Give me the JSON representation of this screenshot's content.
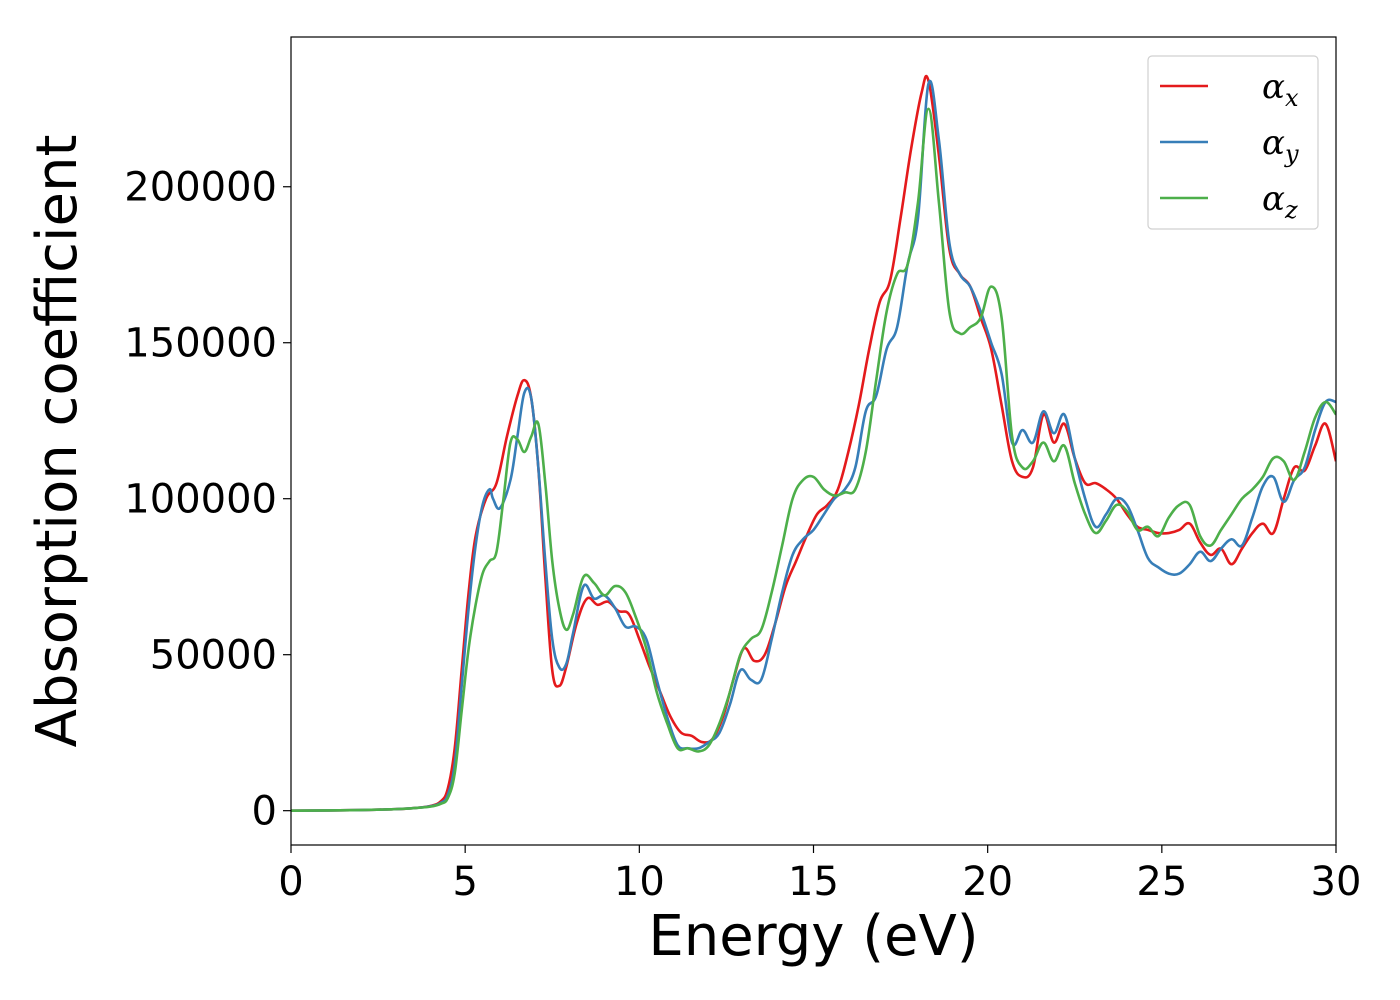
{
  "chart_data": {
    "type": "line",
    "title": "",
    "xlabel": "Energy (eV)",
    "ylabel": "Absorption coefficient",
    "xlim": [
      0,
      30
    ],
    "ylim": [
      -11000,
      248000
    ],
    "xticks": [
      0,
      5,
      10,
      15,
      20,
      25,
      30
    ],
    "yticks": [
      0,
      50000,
      100000,
      150000,
      200000
    ],
    "grid": false,
    "legend_position": "top-right",
    "series": [
      {
        "name": "αx",
        "symbol": "α",
        "subscript": "x",
        "color": "#e41a1c",
        "x": [
          0,
          2,
          3,
          3.5,
          4,
          4.3,
          4.5,
          4.7,
          4.9,
          5.1,
          5.3,
          5.6,
          5.9,
          6.2,
          6.5,
          6.7,
          6.9,
          7.1,
          7.3,
          7.5,
          7.7,
          7.9,
          8.2,
          8.5,
          8.8,
          9.1,
          9.4,
          9.7,
          10.0,
          10.3,
          10.6,
          10.9,
          11.2,
          11.5,
          11.8,
          12.1,
          12.4,
          12.7,
          13.0,
          13.3,
          13.6,
          13.9,
          14.2,
          14.5,
          14.8,
          15.1,
          15.4,
          15.7,
          16.0,
          16.3,
          16.6,
          16.9,
          17.2,
          17.5,
          17.8,
          18.1,
          18.3,
          18.6,
          18.9,
          19.2,
          19.5,
          19.8,
          20.1,
          20.4,
          20.7,
          21.0,
          21.3,
          21.6,
          21.9,
          22.2,
          22.5,
          22.8,
          23.1,
          23.4,
          23.7,
          24.0,
          24.3,
          24.6,
          24.9,
          25.2,
          25.5,
          25.8,
          26.1,
          26.4,
          26.7,
          27.0,
          27.3,
          27.6,
          27.9,
          28.2,
          28.5,
          28.8,
          29.1,
          29.4,
          29.7,
          30
        ],
        "values": [
          0,
          200,
          500,
          800,
          1500,
          3000,
          7000,
          20000,
          45000,
          70000,
          88000,
          100000,
          105000,
          120000,
          133000,
          138000,
          132000,
          110000,
          75000,
          45000,
          40000,
          46000,
          60000,
          68000,
          66000,
          67000,
          64000,
          63000,
          55000,
          46000,
          38000,
          30000,
          25000,
          24000,
          22000,
          23000,
          30000,
          42000,
          52000,
          48000,
          50000,
          60000,
          72000,
          80000,
          88000,
          95000,
          98000,
          103000,
          115000,
          130000,
          148000,
          163000,
          170000,
          190000,
          212000,
          230000,
          234000,
          210000,
          180000,
          172000,
          168000,
          158000,
          148000,
          130000,
          112000,
          107000,
          110000,
          127000,
          118000,
          124000,
          113000,
          105000,
          105000,
          103000,
          100000,
          95000,
          91000,
          90000,
          89000,
          89000,
          90000,
          92000,
          86000,
          82000,
          84000,
          79000,
          84000,
          89000,
          92000,
          89000,
          100000,
          110000,
          109000,
          117000,
          124000,
          112000
        ]
      },
      {
        "name": "αy",
        "symbol": "α",
        "subscript": "y",
        "color": "#377eb8",
        "x": [
          0,
          2,
          3,
          3.5,
          4,
          4.3,
          4.5,
          4.7,
          4.9,
          5.1,
          5.3,
          5.5,
          5.7,
          5.8,
          6.0,
          6.3,
          6.5,
          6.7,
          6.9,
          7.1,
          7.3,
          7.5,
          7.7,
          7.9,
          8.1,
          8.4,
          8.7,
          9.0,
          9.3,
          9.6,
          9.9,
          10.2,
          10.5,
          10.8,
          11.1,
          11.4,
          11.7,
          12.0,
          12.3,
          12.6,
          12.9,
          13.2,
          13.5,
          13.8,
          14.1,
          14.4,
          14.7,
          15.0,
          15.3,
          15.6,
          15.9,
          16.2,
          16.5,
          16.8,
          17.1,
          17.4,
          17.7,
          18.0,
          18.3,
          18.6,
          18.9,
          19.2,
          19.5,
          19.8,
          20.1,
          20.4,
          20.7,
          21.0,
          21.3,
          21.6,
          21.9,
          22.2,
          22.5,
          22.8,
          23.1,
          23.4,
          23.7,
          24.0,
          24.3,
          24.6,
          24.9,
          25.2,
          25.5,
          25.8,
          26.1,
          26.4,
          26.7,
          27.0,
          27.3,
          27.6,
          27.9,
          28.2,
          28.5,
          28.8,
          29.1,
          29.4,
          29.7,
          30
        ],
        "values": [
          0,
          200,
          500,
          800,
          1400,
          2500,
          5000,
          15000,
          40000,
          65000,
          85000,
          98000,
          103000,
          100000,
          97000,
          106000,
          120000,
          134000,
          132000,
          110000,
          80000,
          55000,
          46000,
          47000,
          57000,
          72000,
          68000,
          69000,
          65000,
          59000,
          59000,
          55000,
          42000,
          30000,
          21000,
          20000,
          20000,
          22000,
          25000,
          34000,
          45000,
          42000,
          42000,
          55000,
          70000,
          82000,
          87000,
          90000,
          95000,
          100000,
          103000,
          110000,
          128000,
          133000,
          148000,
          155000,
          175000,
          190000,
          233000,
          215000,
          182000,
          172000,
          168000,
          160000,
          150000,
          140000,
          118000,
          122000,
          118000,
          128000,
          121000,
          127000,
          113000,
          100000,
          91000,
          95000,
          100000,
          98000,
          90000,
          81000,
          78000,
          76000,
          76000,
          79000,
          83000,
          80000,
          84000,
          87000,
          85000,
          94000,
          104000,
          107000,
          99000,
          106000,
          110000,
          122000,
          131000,
          131000
        ]
      },
      {
        "name": "αz",
        "symbol": "α",
        "subscript": "z",
        "color": "#4daf4a",
        "x": [
          0,
          2,
          3,
          3.5,
          4,
          4.3,
          4.5,
          4.7,
          4.9,
          5.1,
          5.3,
          5.5,
          5.7,
          5.9,
          6.1,
          6.3,
          6.5,
          6.7,
          6.9,
          7.1,
          7.3,
          7.5,
          7.7,
          7.9,
          8.1,
          8.4,
          8.7,
          9.0,
          9.3,
          9.6,
          9.9,
          10.2,
          10.5,
          10.8,
          11.1,
          11.4,
          11.7,
          12.0,
          12.3,
          12.6,
          12.9,
          13.2,
          13.5,
          13.8,
          14.1,
          14.4,
          14.7,
          15.0,
          15.3,
          15.6,
          15.9,
          16.2,
          16.5,
          16.8,
          17.1,
          17.4,
          17.7,
          18.0,
          18.3,
          18.6,
          18.9,
          19.2,
          19.5,
          19.8,
          20.1,
          20.4,
          20.7,
          21.0,
          21.3,
          21.6,
          21.9,
          22.2,
          22.5,
          22.8,
          23.1,
          23.4,
          23.7,
          24.0,
          24.3,
          24.6,
          24.9,
          25.2,
          25.5,
          25.8,
          26.1,
          26.4,
          26.7,
          27.0,
          27.3,
          27.6,
          27.9,
          28.2,
          28.5,
          28.8,
          29.1,
          29.4,
          29.7,
          30
        ],
        "values": [
          0,
          200,
          500,
          800,
          1300,
          2200,
          4000,
          12000,
          32000,
          52000,
          66000,
          76000,
          80000,
          83000,
          100000,
          118000,
          119000,
          115000,
          120000,
          124000,
          105000,
          80000,
          65000,
          58000,
          63000,
          75000,
          73000,
          69000,
          72000,
          70000,
          62000,
          52000,
          38000,
          28000,
          20000,
          20000,
          19000,
          21000,
          28000,
          38000,
          50000,
          55000,
          58000,
          70000,
          85000,
          100000,
          106000,
          107000,
          103000,
          101000,
          102000,
          103000,
          115000,
          138000,
          160000,
          172000,
          175000,
          195000,
          225000,
          195000,
          160000,
          153000,
          155000,
          158000,
          168000,
          158000,
          120000,
          110000,
          112000,
          118000,
          112000,
          117000,
          105000,
          95000,
          89000,
          93000,
          98000,
          96000,
          90000,
          91000,
          88000,
          94000,
          98000,
          98000,
          88000,
          85000,
          90000,
          95000,
          100000,
          103000,
          107000,
          113000,
          112000,
          106000,
          115000,
          126000,
          131000,
          127000
        ]
      }
    ]
  }
}
